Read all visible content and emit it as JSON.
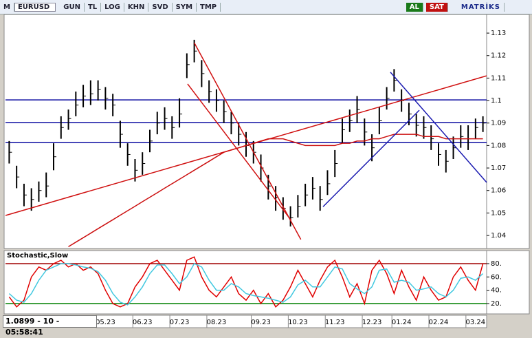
{
  "toolbar": {
    "logo": "M",
    "symbol": "EURUSD",
    "buttons": [
      "GUN",
      "TL",
      "LOG",
      "KHN",
      "SVD",
      "SYM",
      "TMP"
    ],
    "buy": "AL",
    "sell": "SAT",
    "brand": "MATRİKS"
  },
  "status": "1.0899 - 10 - 05:58:41",
  "chart_data": [
    {
      "type": "ohlc",
      "categories": [
        null,
        null,
        null,
        null,
        null,
        null,
        null,
        null,
        null,
        null,
        null,
        null,
        null,
        "05.23",
        null,
        null,
        null,
        null,
        "06.23",
        null,
        null,
        null,
        null,
        "07.23",
        null,
        null,
        null,
        null,
        "08.23",
        null,
        null,
        null,
        null,
        null,
        "09.23",
        null,
        null,
        null,
        null,
        "10.23",
        null,
        null,
        null,
        null,
        "11.23",
        null,
        null,
        null,
        null,
        "12.23",
        null,
        null,
        null,
        "01.24",
        null,
        null,
        null,
        null,
        "02.24",
        null,
        null,
        null,
        null,
        "03.24",
        null
      ],
      "high": [
        1.082,
        1.071,
        1.063,
        1.061,
        1.064,
        1.068,
        1.081,
        1.093,
        1.096,
        1.104,
        1.107,
        1.109,
        1.109,
        1.106,
        1.103,
        1.091,
        1.081,
        1.074,
        1.077,
        1.087,
        1.095,
        1.097,
        1.093,
        1.101,
        1.121,
        1.127,
        1.118,
        1.109,
        1.105,
        1.1,
        1.095,
        1.09,
        1.086,
        1.082,
        1.076,
        1.067,
        1.062,
        1.057,
        1.053,
        1.058,
        1.063,
        1.066,
        1.062,
        1.069,
        1.078,
        1.092,
        1.096,
        1.102,
        1.092,
        1.085,
        1.097,
        1.106,
        1.114,
        1.105,
        1.099,
        1.094,
        1.093,
        1.089,
        1.081,
        1.078,
        1.084,
        1.089,
        1.089,
        1.092,
        1.093
      ],
      "low": [
        1.072,
        1.061,
        1.053,
        1.051,
        1.055,
        1.057,
        1.069,
        1.083,
        1.087,
        1.093,
        1.097,
        1.098,
        1.1,
        1.096,
        1.093,
        1.079,
        1.071,
        1.064,
        1.067,
        1.077,
        1.085,
        1.087,
        1.083,
        1.088,
        1.11,
        1.117,
        1.106,
        1.099,
        1.095,
        1.09,
        1.085,
        1.08,
        1.075,
        1.072,
        1.064,
        1.056,
        1.051,
        1.047,
        1.044,
        1.048,
        1.053,
        1.056,
        1.051,
        1.058,
        1.066,
        1.081,
        1.086,
        1.09,
        1.08,
        1.073,
        1.085,
        1.096,
        1.104,
        1.095,
        1.089,
        1.084,
        1.083,
        1.078,
        1.071,
        1.068,
        1.074,
        1.079,
        1.078,
        1.083,
        1.086
      ],
      "close": [
        1.077,
        1.066,
        1.058,
        1.056,
        1.06,
        1.062,
        1.075,
        1.088,
        1.092,
        1.098,
        1.102,
        1.103,
        1.105,
        1.101,
        1.098,
        1.085,
        1.076,
        1.069,
        1.072,
        1.082,
        1.09,
        1.092,
        1.088,
        1.094,
        1.116,
        1.122,
        1.112,
        1.104,
        1.1,
        1.095,
        1.09,
        1.085,
        1.08,
        1.077,
        1.07,
        1.062,
        1.057,
        1.052,
        1.048,
        1.053,
        1.058,
        1.061,
        1.056,
        1.063,
        1.072,
        1.087,
        1.091,
        1.096,
        1.086,
        1.079,
        1.091,
        1.101,
        1.109,
        1.1,
        1.094,
        1.089,
        1.088,
        1.083,
        1.076,
        1.073,
        1.079,
        1.084,
        1.083,
        1.088,
        1.09
      ],
      "color": "#000000",
      "series": [
        {
          "color": "#cc1010",
          "values": [
            null,
            null,
            null,
            null,
            null,
            null,
            null,
            null,
            1.035,
            1.037,
            1.039,
            1.041,
            1.043,
            1.045,
            1.047,
            1.049,
            1.051,
            1.053,
            1.055,
            1.057,
            1.059,
            1.061,
            1.063,
            1.065,
            1.067,
            1.069,
            1.071,
            1.073,
            1.075,
            1.077,
            1.078,
            1.079,
            1.08,
            1.081,
            1.082,
            1.083,
            1.083,
            1.083,
            1.082,
            1.081,
            1.08,
            1.08,
            1.08,
            1.08,
            1.08,
            1.081,
            1.081,
            1.082,
            1.082,
            1.083,
            1.083,
            1.084,
            1.085,
            1.085,
            1.085,
            1.085,
            1.084,
            1.084,
            1.084,
            1.083,
            1.083,
            1.083,
            1.083,
            1.083,
            1.083
          ]
        }
      ],
      "hlines": {
        "color": "#0a0aa0",
        "values": [
          1.1003,
          1.0902,
          1.0813
        ]
      },
      "trendlines": [
        {
          "color": "#d01010",
          "points": [
            [
              -0.5,
              1.0489
            ],
            [
              64.5,
              1.111
            ]
          ]
        },
        {
          "color": "#d01010",
          "points": [
            [
              25.0,
              1.1257
            ],
            [
              39.4,
              1.0382
            ]
          ]
        },
        {
          "color": "#d01010",
          "points": [
            [
              24.1,
              1.1074
            ],
            [
              38.1,
              1.0467
            ]
          ]
        },
        {
          "color": "#1a1ab0",
          "points": [
            [
              42.4,
              1.0528
            ],
            [
              55.4,
              1.0957
            ]
          ]
        },
        {
          "color": "#1a1ab0",
          "points": [
            [
              51.5,
              1.1126
            ],
            [
              64.5,
              1.0636
            ]
          ]
        }
      ],
      "ylim": [
        1.0345,
        1.1386
      ],
      "yticks": [
        1.04,
        1.05,
        1.06,
        1.07,
        1.08,
        1.09,
        1.1,
        1.11,
        1.12,
        1.13
      ]
    },
    {
      "type": "line",
      "title": "Stochastic,Slow",
      "series": [
        {
          "color": "#e00000",
          "values": [
            30,
            15,
            25,
            60,
            75,
            70,
            80,
            85,
            75,
            80,
            70,
            75,
            65,
            40,
            20,
            15,
            20,
            45,
            60,
            80,
            85,
            70,
            55,
            40,
            85,
            90,
            60,
            40,
            30,
            45,
            60,
            35,
            25,
            40,
            20,
            35,
            15,
            25,
            45,
            70,
            50,
            30,
            55,
            75,
            85,
            60,
            30,
            50,
            20,
            70,
            85,
            65,
            35,
            70,
            45,
            25,
            60,
            40,
            25,
            30,
            60,
            75,
            55,
            40,
            80
          ]
        },
        {
          "color": "#40c8e0",
          "values": [
            35,
            25,
            22,
            35,
            55,
            70,
            75,
            80,
            80,
            78,
            75,
            73,
            68,
            55,
            35,
            22,
            18,
            30,
            45,
            65,
            78,
            78,
            65,
            50,
            60,
            80,
            75,
            55,
            40,
            40,
            50,
            45,
            35,
            32,
            30,
            28,
            25,
            22,
            30,
            48,
            55,
            45,
            45,
            60,
            75,
            72,
            50,
            42,
            35,
            45,
            70,
            72,
            52,
            55,
            52,
            40,
            42,
            45,
            35,
            30,
            40,
            58,
            60,
            55,
            65
          ]
        }
      ],
      "levels": [
        {
          "value": 80,
          "color": "#a00000"
        },
        {
          "value": 20,
          "color": "#008000"
        }
      ],
      "ylim": [
        5.5,
        98.6
      ],
      "yticks": [
        {
          "value": 20,
          "label": "20."
        },
        {
          "value": 40,
          "label": "40."
        },
        {
          "value": 60,
          "label": "60."
        },
        {
          "value": 80,
          "label": "80."
        }
      ]
    }
  ]
}
